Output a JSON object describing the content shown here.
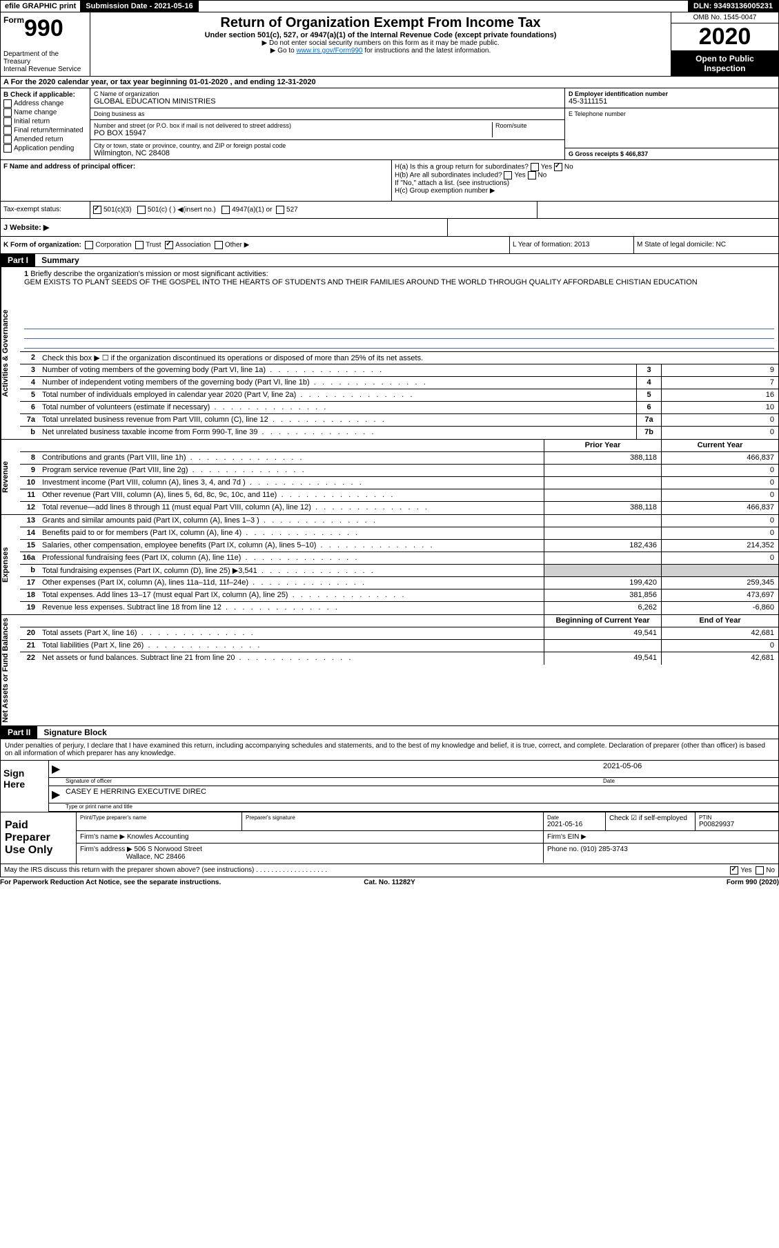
{
  "topbar": {
    "efile": "efile GRAPHIC print",
    "submission_label": "Submission Date - 2021-05-16",
    "dln": "DLN: 93493136005231"
  },
  "header": {
    "form_word": "Form",
    "form_num": "990",
    "dept1": "Department of the Treasury",
    "dept2": "Internal Revenue Service",
    "title": "Return of Organization Exempt From Income Tax",
    "sub": "Under section 501(c), 527, or 4947(a)(1) of the Internal Revenue Code (except private foundations)",
    "hint1": "▶ Do not enter social security numbers on this form as it may be made public.",
    "hint2_pre": "▶ Go to ",
    "hint2_link": "www.irs.gov/Form990",
    "hint2_post": " for instructions and the latest information.",
    "omb": "OMB No. 1545-0047",
    "year": "2020",
    "inspect1": "Open to Public",
    "inspect2": "Inspection"
  },
  "lineA": "A For the 2020 calendar year, or tax year beginning 01-01-2020   , and ending 12-31-2020",
  "B": {
    "hdr": "B Check if applicable:",
    "opts": [
      "Address change",
      "Name change",
      "Initial return",
      "Final return/terminated",
      "Amended return",
      "Application pending"
    ]
  },
  "C": {
    "name_lbl": "C Name of organization",
    "name": "GLOBAL EDUCATION MINISTRIES",
    "dba_lbl": "Doing business as",
    "addr_lbl": "Number and street (or P.O. box if mail is not delivered to street address)",
    "room_lbl": "Room/suite",
    "addr": "PO BOX 15947",
    "city_lbl": "City or town, state or province, country, and ZIP or foreign postal code",
    "city": "Wilmington, NC  28408"
  },
  "D": {
    "lbl": "D Employer identification number",
    "val": "45-3111151"
  },
  "E": {
    "lbl": "E Telephone number",
    "val": ""
  },
  "G": {
    "lbl": "G Gross receipts $ 466,837"
  },
  "F": {
    "lbl": "F  Name and address of principal officer:",
    "val": ""
  },
  "H": {
    "a": "H(a)  Is this a group return for subordinates?",
    "a_yes": "Yes",
    "a_no": "No",
    "b": "H(b)  Are all subordinates included?",
    "b_yes": "Yes",
    "b_no": "No",
    "b_hint": "If \"No,\" attach a list. (see instructions)",
    "c": "H(c)  Group exemption number ▶"
  },
  "I": {
    "lbl": "Tax-exempt status:",
    "o1": "501(c)(3)",
    "o2": "501(c) (  ) ◀(insert no.)",
    "o3": "4947(a)(1) or",
    "o4": "527"
  },
  "J": {
    "lbl": "J   Website: ▶"
  },
  "K": {
    "lbl": "K Form of organization:",
    "o1": "Corporation",
    "o2": "Trust",
    "o3": "Association",
    "o4": "Other ▶"
  },
  "L": {
    "lbl": "L Year of formation: 2013"
  },
  "M": {
    "lbl": "M State of legal domicile: NC"
  },
  "part1": {
    "tag": "Part I",
    "title": "Summary"
  },
  "mission": {
    "n": "1",
    "lbl": "Briefly describe the organization's mission or most significant activities:",
    "text": "GEM EXISTS TO PLANT SEEDS OF THE GOSPEL INTO THE HEARTS OF STUDENTS AND THEIR FAMILIES AROUND THE WORLD THROUGH QUALITY AFFORDABLE CHISTIAN EDUCATION"
  },
  "line2": {
    "n": "2",
    "desc": "Check this box ▶ ☐  if the organization discontinued its operations or disposed of more than 25% of its net assets."
  },
  "tab_hdrs": {
    "prior": "Prior Year",
    "current": "Current Year",
    "boc": "Beginning of Current Year",
    "eoy": "End of Year"
  },
  "vtabs": {
    "gov": "Activities & Governance",
    "rev": "Revenue",
    "exp": "Expenses",
    "net": "Net Assets or Fund Balances"
  },
  "gov_lines": [
    {
      "n": "3",
      "desc": "Number of voting members of the governing body (Part VI, line 1a)",
      "box": "3",
      "val": "9"
    },
    {
      "n": "4",
      "desc": "Number of independent voting members of the governing body (Part VI, line 1b)",
      "box": "4",
      "val": "7"
    },
    {
      "n": "5",
      "desc": "Total number of individuals employed in calendar year 2020 (Part V, line 2a)",
      "box": "5",
      "val": "16"
    },
    {
      "n": "6",
      "desc": "Total number of volunteers (estimate if necessary)",
      "box": "6",
      "val": "10"
    },
    {
      "n": "7a",
      "desc": "Total unrelated business revenue from Part VIII, column (C), line 12",
      "box": "7a",
      "val": "0"
    },
    {
      "n": "b",
      "desc": "Net unrelated business taxable income from Form 990-T, line 39",
      "box": "7b",
      "val": "0"
    }
  ],
  "rev_lines": [
    {
      "n": "8",
      "desc": "Contributions and grants (Part VIII, line 1h)",
      "prior": "388,118",
      "curr": "466,837"
    },
    {
      "n": "9",
      "desc": "Program service revenue (Part VIII, line 2g)",
      "prior": "",
      "curr": "0"
    },
    {
      "n": "10",
      "desc": "Investment income (Part VIII, column (A), lines 3, 4, and 7d )",
      "prior": "",
      "curr": "0"
    },
    {
      "n": "11",
      "desc": "Other revenue (Part VIII, column (A), lines 5, 6d, 8c, 9c, 10c, and 11e)",
      "prior": "",
      "curr": "0"
    },
    {
      "n": "12",
      "desc": "Total revenue—add lines 8 through 11 (must equal Part VIII, column (A), line 12)",
      "prior": "388,118",
      "curr": "466,837"
    }
  ],
  "exp_lines": [
    {
      "n": "13",
      "desc": "Grants and similar amounts paid (Part IX, column (A), lines 1–3 )",
      "prior": "",
      "curr": "0"
    },
    {
      "n": "14",
      "desc": "Benefits paid to or for members (Part IX, column (A), line 4)",
      "prior": "",
      "curr": "0"
    },
    {
      "n": "15",
      "desc": "Salaries, other compensation, employee benefits (Part IX, column (A), lines 5–10)",
      "prior": "182,436",
      "curr": "214,352"
    },
    {
      "n": "16a",
      "desc": "Professional fundraising fees (Part IX, column (A), line 11e)",
      "prior": "",
      "curr": "0"
    },
    {
      "n": "b",
      "desc": "Total fundraising expenses (Part IX, column (D), line 25) ▶3,541",
      "prior": "grey",
      "curr": "grey"
    },
    {
      "n": "17",
      "desc": "Other expenses (Part IX, column (A), lines 11a–11d, 11f–24e)",
      "prior": "199,420",
      "curr": "259,345"
    },
    {
      "n": "18",
      "desc": "Total expenses. Add lines 13–17 (must equal Part IX, column (A), line 25)",
      "prior": "381,856",
      "curr": "473,697"
    },
    {
      "n": "19",
      "desc": "Revenue less expenses. Subtract line 18 from line 12",
      "prior": "6,262",
      "curr": "-6,860"
    }
  ],
  "net_lines": [
    {
      "n": "20",
      "desc": "Total assets (Part X, line 16)",
      "prior": "49,541",
      "curr": "42,681"
    },
    {
      "n": "21",
      "desc": "Total liabilities (Part X, line 26)",
      "prior": "",
      "curr": "0"
    },
    {
      "n": "22",
      "desc": "Net assets or fund balances. Subtract line 21 from line 20",
      "prior": "49,541",
      "curr": "42,681"
    }
  ],
  "part2": {
    "tag": "Part II",
    "title": "Signature Block"
  },
  "sig": {
    "decl": "Under penalties of perjury, I declare that I have examined this return, including accompanying schedules and statements, and to the best of my knowledge and belief, it is true, correct, and complete. Declaration of preparer (other than officer) is based on all information of which preparer has any knowledge.",
    "here": "Sign Here",
    "off_lbl": "Signature of officer",
    "date_lbl": "Date",
    "date": "2021-05-06",
    "name": "CASEY E HERRING  EXECUTIVE DIREC",
    "name_lbl": "Type or print name and title"
  },
  "prep": {
    "hdr": "Paid Preparer Use Only",
    "c1": "Print/Type preparer's name",
    "c2": "Preparer's signature",
    "c3": "Date",
    "c3v": "2021-05-16",
    "c4": "Check ☑ if self-employed",
    "c5": "PTIN",
    "c5v": "P00829937",
    "firm_lbl": "Firm's name   ▶",
    "firm": "Knowles Accounting",
    "ein_lbl": "Firm's EIN ▶",
    "addr_lbl": "Firm's address ▶",
    "addr1": "506 S Norwood Street",
    "addr2": "Wallace, NC  28466",
    "phone_lbl": "Phone no. (910) 285-3743"
  },
  "irs_q": "May the IRS discuss this return with the preparer shown above? (see instructions)",
  "irs_yes": "Yes",
  "irs_no": "No",
  "footer": {
    "l": "For Paperwork Reduction Act Notice, see the separate instructions.",
    "m": "Cat. No. 11282Y",
    "r": "Form 990 (2020)"
  }
}
